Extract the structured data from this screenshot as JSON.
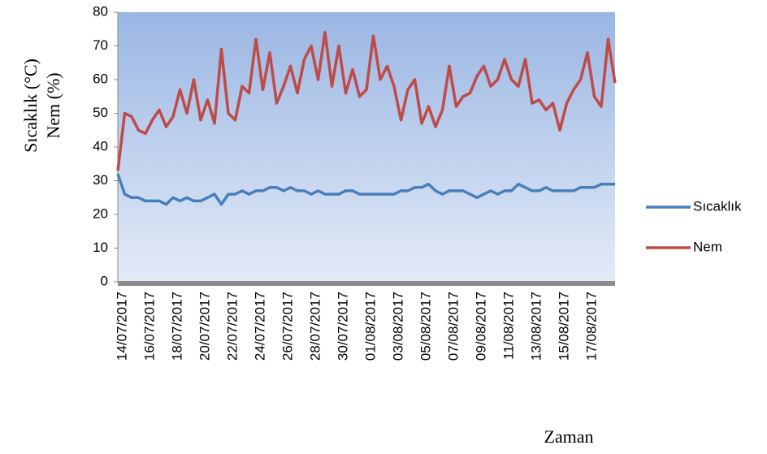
{
  "chart_data": {
    "type": "line",
    "x_label": "Zaman",
    "y_labels": [
      "Sıcaklık (°C)",
      "Nem (%)"
    ],
    "categories": [
      "14/07/2017",
      null,
      null,
      null,
      "16/07/2017",
      null,
      null,
      null,
      "18/07/2017",
      null,
      null,
      null,
      "20/07/2017",
      null,
      null,
      null,
      "22/07/2017",
      null,
      null,
      null,
      "24/07/2017",
      null,
      null,
      null,
      "26/07/2017",
      null,
      null,
      null,
      "28/07/2017",
      null,
      null,
      null,
      "30/07/2017",
      null,
      null,
      null,
      "01/08/2017",
      null,
      null,
      null,
      "03/08/2017",
      null,
      null,
      null,
      "05/08/2017",
      null,
      null,
      null,
      "07/08/2017",
      null,
      null,
      null,
      "09/08/2017",
      null,
      null,
      null,
      "11/08/2017",
      null,
      null,
      null,
      "13/08/2017",
      null,
      null,
      null,
      "15/08/2017",
      null,
      null,
      null,
      "17/08/2017",
      null,
      null,
      null,
      null
    ],
    "series": [
      {
        "name": "Sıcaklık",
        "color": "#4a7ebb",
        "values": [
          32,
          26,
          25,
          25,
          24,
          24,
          24,
          23,
          25,
          24,
          25,
          24,
          24,
          25,
          26,
          23,
          26,
          26,
          27,
          26,
          27,
          27,
          28,
          28,
          27,
          28,
          27,
          27,
          26,
          27,
          26,
          26,
          26,
          27,
          27,
          26,
          26,
          26,
          26,
          26,
          26,
          27,
          27,
          28,
          28,
          29,
          27,
          26,
          27,
          27,
          27,
          26,
          25,
          26,
          27,
          26,
          27,
          27,
          29,
          28,
          27,
          27,
          28,
          27,
          27,
          27,
          27,
          28,
          28,
          28,
          29,
          29,
          29
        ]
      },
      {
        "name": "Nem",
        "color": "#be4b48",
        "values": [
          33,
          50,
          49,
          45,
          44,
          48,
          51,
          46,
          49,
          57,
          50,
          60,
          48,
          54,
          47,
          69,
          50,
          48,
          58,
          56,
          72,
          57,
          68,
          53,
          58,
          64,
          56,
          66,
          70,
          60,
          74,
          58,
          70,
          56,
          63,
          55,
          57,
          73,
          60,
          64,
          58,
          48,
          57,
          60,
          47,
          52,
          46,
          51,
          64,
          52,
          55,
          56,
          61,
          64,
          58,
          60,
          66,
          60,
          58,
          66,
          53,
          54,
          51,
          53,
          45,
          53,
          57,
          60,
          68,
          55,
          52,
          72,
          59
        ]
      }
    ],
    "ylim": [
      0,
      80
    ],
    "yticks": [
      0,
      10,
      20,
      30,
      40,
      50,
      60,
      70,
      80
    ],
    "legend": "right"
  }
}
